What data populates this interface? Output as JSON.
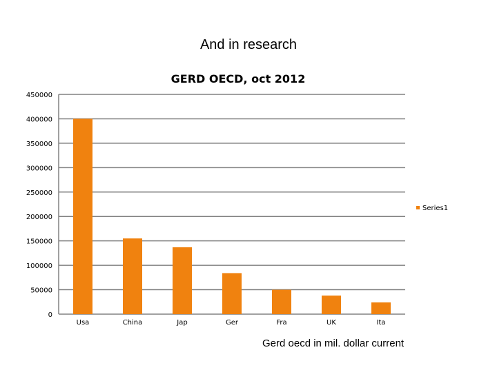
{
  "slide_title": "And in research",
  "caption": "Gerd oecd in mil. dollar current",
  "chart_data": {
    "type": "bar",
    "title": "GERD OECD, oct 2012",
    "categories": [
      "Usa",
      "China",
      "Jap",
      "Ger",
      "Fra",
      "UK",
      "Ita"
    ],
    "series": [
      {
        "name": "Series1",
        "values": [
          400000,
          155000,
          137000,
          84000,
          50000,
          38000,
          24000
        ]
      }
    ],
    "yticks": [
      0,
      50000,
      100000,
      150000,
      200000,
      250000,
      300000,
      350000,
      400000,
      450000
    ],
    "ylim": [
      0,
      450000
    ],
    "xlabel": "",
    "ylabel": "",
    "grid": true,
    "legend": "right",
    "bar_color": "#f0820f",
    "grid_color": "#808080"
  }
}
